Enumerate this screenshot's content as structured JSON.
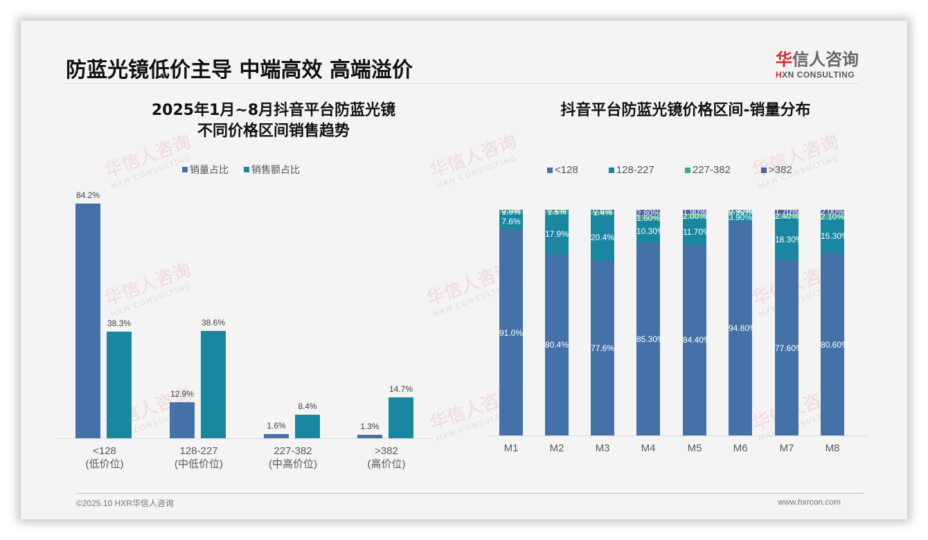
{
  "page": {
    "title": "防蓝光镜低价主导 中端高效 高端溢价",
    "logo_cn_accent": "华",
    "logo_cn_rest": "信人咨询",
    "logo_en_accent": "H",
    "logo_en_rest": "XN CONSULTING",
    "watermark_cn": "华信人咨询",
    "watermark_en": "HXN CONSULTING",
    "footer_left": "©2025.10 HXR华信人咨询",
    "footer_right": "www.hxrcon.com"
  },
  "colors": {
    "blue": "#4472a8",
    "teal": "#1a87a0",
    "green": "#3aa88e",
    "navy": "#5060a0"
  },
  "chart_data": [
    {
      "type": "bar",
      "title": "2025年1月~8月抖音平台防蓝光镜 不同价格区间销售趋势",
      "title_line1": "2025年1月~8月抖音平台防蓝光镜",
      "title_line2": "不同价格区间销售趋势",
      "categories": [
        "<128 (低价位)",
        "128-227 (中低价位)",
        "227-382 (中高价位)",
        ">382 (高价位)"
      ],
      "category_line1": [
        "<128",
        "128-227",
        "227-382",
        ">382"
      ],
      "category_line2": [
        "(低价位)",
        "(中低价位)",
        "(中高价位)",
        "(高价位)"
      ],
      "series": [
        {
          "name": "销量占比",
          "values": [
            84.2,
            12.9,
            1.6,
            1.3
          ],
          "labels": [
            "84.2%",
            "12.9%",
            "1.6%",
            "1.3%"
          ],
          "color": "#4472a8"
        },
        {
          "name": "销售额占比",
          "values": [
            38.3,
            38.6,
            8.4,
            14.7
          ],
          "labels": [
            "38.3%",
            "38.6%",
            "8.4%",
            "14.7%"
          ],
          "color": "#1a87a0"
        }
      ],
      "xlabel": "",
      "ylabel": "",
      "ylim": [
        0,
        90
      ],
      "legend_position": "top",
      "grid": false
    },
    {
      "type": "bar",
      "stacked": true,
      "title": "抖音平台防蓝光镜价格区间-销量分布",
      "categories": [
        "M1",
        "M2",
        "M3",
        "M4",
        "M5",
        "M6",
        "M7",
        "M8"
      ],
      "series": [
        {
          "name": "<128",
          "values": [
            91.0,
            80.4,
            77.6,
            85.3,
            84.4,
            94.8,
            77.6,
            80.6
          ],
          "labels": [
            "91.0%",
            "80.4%",
            "77.6%",
            "85.30%",
            "84.40%",
            "94.80%",
            "77.60%",
            "80.60%"
          ],
          "color": "#4472a8"
        },
        {
          "name": "128-227",
          "values": [
            7.6,
            17.9,
            20.4,
            10.3,
            11.7,
            3.9,
            18.3,
            15.3
          ],
          "labels": [
            "7.6%",
            "17.9%",
            "20.4%",
            "10.30%",
            "11.70%",
            "3.90%",
            "18.30%",
            "15.30%"
          ],
          "color": "#1a87a0"
        },
        {
          "name": "227-382",
          "values": [
            1.0,
            1.5,
            1.4,
            1.6,
            2.0,
            0.9,
            2.4,
            2.1
          ],
          "labels": [
            "1.0%",
            "1.5%",
            "1.4%",
            "1.60%",
            "2.00%",
            "0.90%",
            "2.40%",
            "2.10%"
          ],
          "color": "#3aa88e"
        },
        {
          "name": ">382",
          "values": [
            0.4,
            0.2,
            0.6,
            2.8,
            1.9,
            0.4,
            1.7,
            2.0
          ],
          "labels": [
            "0.4%",
            "0.2%",
            "0.6%",
            "2.80%",
            "1.90%",
            "0.40%",
            "1.70%",
            "2.00%"
          ],
          "color": "#5060a0"
        }
      ],
      "xlabel": "",
      "ylabel": "",
      "ylim": [
        0,
        100
      ],
      "legend_position": "top",
      "grid": false
    }
  ]
}
